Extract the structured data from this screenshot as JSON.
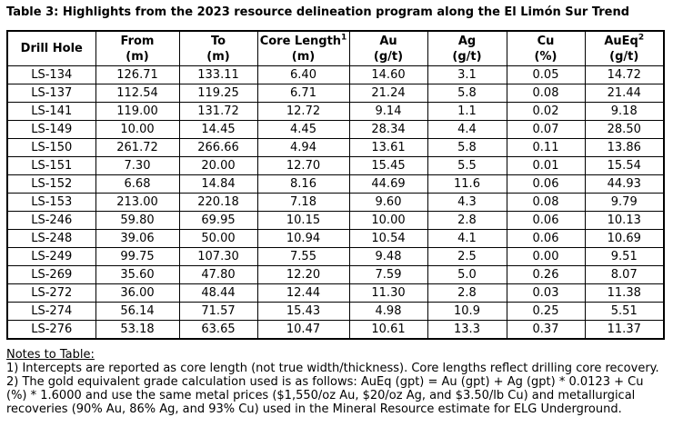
{
  "title": "Table 3: Highlights from the 2023 resource delineation program along the El Limón Sur Trend",
  "table": {
    "columns": [
      {
        "name": "Drill Hole",
        "sup": "",
        "unit": ""
      },
      {
        "name": "From",
        "sup": "",
        "unit": "(m)"
      },
      {
        "name": "To",
        "sup": "",
        "unit": "(m)"
      },
      {
        "name": "Core Length",
        "sup": "1",
        "unit": "(m)"
      },
      {
        "name": "Au",
        "sup": "",
        "unit": "(g/t)"
      },
      {
        "name": "Ag",
        "sup": "",
        "unit": "(g/t)"
      },
      {
        "name": "Cu",
        "sup": "",
        "unit": "(%)"
      },
      {
        "name": "AuEq",
        "sup": "2",
        "unit": "(g/t)"
      }
    ],
    "rows": [
      [
        "LS-134",
        "126.71",
        "133.11",
        "6.40",
        "14.60",
        "3.1",
        "0.05",
        "14.72"
      ],
      [
        "LS-137",
        "112.54",
        "119.25",
        "6.71",
        "21.24",
        "5.8",
        "0.08",
        "21.44"
      ],
      [
        "LS-141",
        "119.00",
        "131.72",
        "12.72",
        "9.14",
        "1.1",
        "0.02",
        "9.18"
      ],
      [
        "LS-149",
        "10.00",
        "14.45",
        "4.45",
        "28.34",
        "4.4",
        "0.07",
        "28.50"
      ],
      [
        "LS-150",
        "261.72",
        "266.66",
        "4.94",
        "13.61",
        "5.8",
        "0.11",
        "13.86"
      ],
      [
        "LS-151",
        "7.30",
        "20.00",
        "12.70",
        "15.45",
        "5.5",
        "0.01",
        "15.54"
      ],
      [
        "LS-152",
        "6.68",
        "14.84",
        "8.16",
        "44.69",
        "11.6",
        "0.06",
        "44.93"
      ],
      [
        "LS-153",
        "213.00",
        "220.18",
        "7.18",
        "9.60",
        "4.3",
        "0.08",
        "9.79"
      ],
      [
        "LS-246",
        "59.80",
        "69.95",
        "10.15",
        "10.00",
        "2.8",
        "0.06",
        "10.13"
      ],
      [
        "LS-248",
        "39.06",
        "50.00",
        "10.94",
        "10.54",
        "4.1",
        "0.06",
        "10.69"
      ],
      [
        "LS-249",
        "99.75",
        "107.30",
        "7.55",
        "9.48",
        "2.5",
        "0.00",
        "9.51"
      ],
      [
        "LS-269",
        "35.60",
        "47.80",
        "12.20",
        "7.59",
        "5.0",
        "0.26",
        "8.07"
      ],
      [
        "LS-272",
        "36.00",
        "48.44",
        "12.44",
        "11.30",
        "2.8",
        "0.03",
        "11.38"
      ],
      [
        "LS-274",
        "56.14",
        "71.57",
        "15.43",
        "4.98",
        "10.9",
        "0.25",
        "5.51"
      ],
      [
        "LS-276",
        "53.18",
        "63.65",
        "10.47",
        "10.61",
        "13.3",
        "0.37",
        "11.37"
      ]
    ]
  },
  "notes": {
    "heading": "Notes to Table:",
    "items": [
      "1) Intercepts are reported as core length (not true width/thickness). Core lengths reflect drilling core recovery.",
      "2) The gold equivalent grade calculation used is as follows: AuEq (gpt) = Au (gpt) + Ag (gpt) * 0.0123 + Cu (%) * 1.6000 and use the same metal prices ($1,550/oz Au, $20/oz Ag, and $3.50/lb Cu) and metallurgical recoveries (90% Au, 86% Ag, and 93% Cu) used in the Mineral Resource estimate for ELG Underground."
    ]
  },
  "colors": {
    "text": "#000000",
    "border": "#000000",
    "background": "#ffffff"
  }
}
